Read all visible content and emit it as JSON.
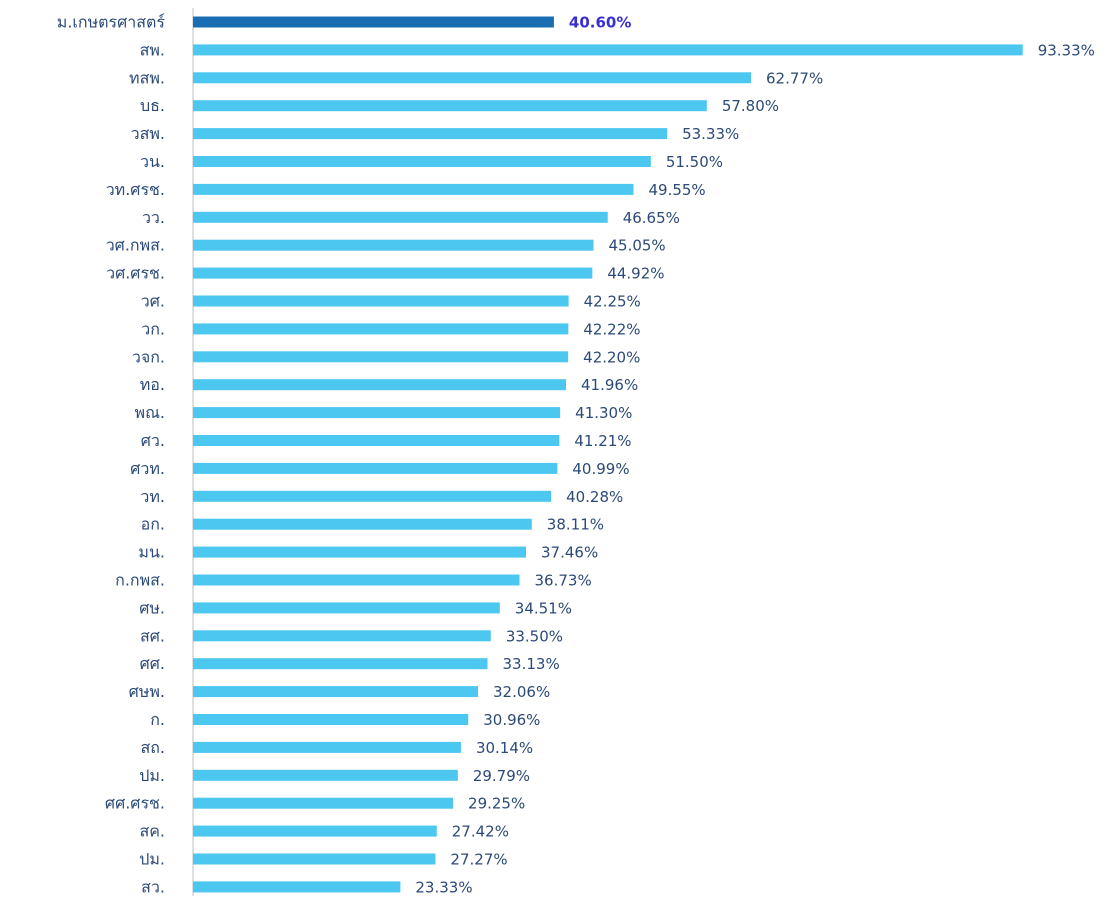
{
  "chart_data": {
    "type": "barh",
    "categories": [
      "ม.เกษตรศาสตร์",
      "สพ.",
      "ทสพ.",
      "บธ.",
      "วสพ.",
      "วน.",
      "วท.ศรช.",
      "วว.",
      "วศ.กพส.",
      "วศ.ศรช.",
      "วศ.",
      "วก.",
      "วจก.",
      "ทอ.",
      "พณ.",
      "ศว.",
      "ศวท.",
      "วท.",
      "อก.",
      "มน.",
      "ก.กพส.",
      "ศษ.",
      "สศ.",
      "ศศ.",
      "ศษพ.",
      "ก.",
      "สถ.",
      "ปม.",
      "ศศ.ศรช.",
      "สค.",
      "ปม.",
      "สว."
    ],
    "values": [
      40.6,
      93.33,
      62.77,
      57.8,
      53.33,
      51.5,
      49.55,
      46.65,
      45.05,
      44.92,
      42.25,
      42.22,
      42.2,
      41.96,
      41.3,
      41.21,
      40.99,
      40.28,
      38.11,
      37.46,
      36.73,
      34.51,
      33.5,
      33.13,
      32.06,
      30.96,
      30.14,
      29.79,
      29.25,
      27.42,
      27.27,
      23.33
    ],
    "value_labels": [
      "40.60%",
      "93.33%",
      "62.77%",
      "57.80%",
      "53.33%",
      "51.50%",
      "49.55%",
      "46.65%",
      "45.05%",
      "44.92%",
      "42.25%",
      "42.22%",
      "42.20%",
      "41.96%",
      "41.30%",
      "41.21%",
      "40.99%",
      "40.28%",
      "38.11%",
      "37.46%",
      "36.73%",
      "34.51%",
      "33.50%",
      "33.13%",
      "32.06%",
      "30.96%",
      "30.14%",
      "29.79%",
      "29.25%",
      "27.42%",
      "27.27%",
      "23.33%"
    ],
    "colors": [
      "#1b6db3",
      "#4cc7f0",
      "#4cc7f0",
      "#4cc7f0",
      "#4cc7f0",
      "#4cc7f0",
      "#4cc7f0",
      "#4cc7f0",
      "#4cc7f0",
      "#4cc7f0",
      "#4cc7f0",
      "#4cc7f0",
      "#4cc7f0",
      "#4cc7f0",
      "#4cc7f0",
      "#4cc7f0",
      "#4cc7f0",
      "#4cc7f0",
      "#4cc7f0",
      "#4cc7f0",
      "#4cc7f0",
      "#4cc7f0",
      "#4cc7f0",
      "#4cc7f0",
      "#4cc7f0",
      "#4cc7f0",
      "#4cc7f0",
      "#4cc7f0",
      "#4cc7f0",
      "#4cc7f0",
      "#4cc7f0",
      "#4cc7f0"
    ],
    "label_colors": [
      "#3a2fd0",
      "#2c4a78",
      "#2c4a78",
      "#2c4a78",
      "#2c4a78",
      "#2c4a78",
      "#2c4a78",
      "#2c4a78",
      "#2c4a78",
      "#2c4a78",
      "#2c4a78",
      "#2c4a78",
      "#2c4a78",
      "#2c4a78",
      "#2c4a78",
      "#2c4a78",
      "#2c4a78",
      "#2c4a78",
      "#2c4a78",
      "#2c4a78",
      "#2c4a78",
      "#2c4a78",
      "#2c4a78",
      "#2c4a78",
      "#2c4a78",
      "#2c4a78",
      "#2c4a78",
      "#2c4a78",
      "#2c4a78",
      "#2c4a78",
      "#2c4a78",
      "#2c4a78"
    ],
    "xlim": [
      0,
      100
    ]
  }
}
